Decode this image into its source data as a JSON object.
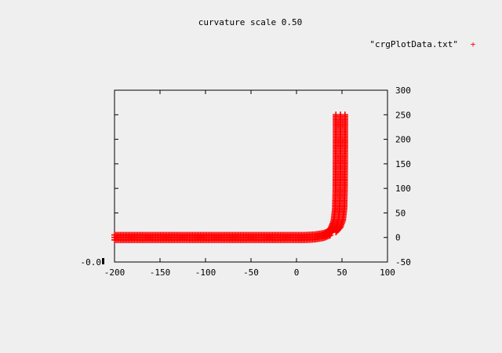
{
  "chart_data": {
    "type": "scatter",
    "title": "curvature scale 0.50",
    "xlabel": "",
    "ylabel": "",
    "legend_position": "top-right",
    "marker_color": "#ff0000",
    "xlim": [
      -200,
      100
    ],
    "ylim": [
      -50,
      300
    ],
    "zlim": [
      -0.0,
      0.0
    ],
    "x_ticks": [
      "-200",
      "-150",
      "-100",
      "-50",
      "0",
      "50",
      "100"
    ],
    "y_ticks_right": [
      "-50",
      "0",
      "50",
      "100",
      "150",
      "200",
      "250",
      "300"
    ],
    "z_tick_label": "-0.0",
    "series": [
      {
        "name": "\"crgPlotData.txt\"",
        "marker": "+",
        "curve": [
          {
            "x": -200,
            "y": 0
          },
          {
            "x": -150,
            "y": 0
          },
          {
            "x": -100,
            "y": 0
          },
          {
            "x": -50,
            "y": 0
          },
          {
            "x": 0,
            "y": 0
          },
          {
            "x": 10,
            "y": 0
          },
          {
            "x": 20,
            "y": 1
          },
          {
            "x": 30,
            "y": 4
          },
          {
            "x": 38,
            "y": 10
          },
          {
            "x": 43,
            "y": 20
          },
          {
            "x": 46,
            "y": 35
          },
          {
            "x": 47.5,
            "y": 60
          },
          {
            "x": 48,
            "y": 100
          },
          {
            "x": 48.2,
            "y": 150
          },
          {
            "x": 48.3,
            "y": 200
          },
          {
            "x": 48.3,
            "y": 250
          }
        ],
        "band_half_width": 5
      }
    ]
  }
}
